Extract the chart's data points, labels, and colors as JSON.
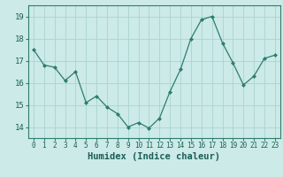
{
  "x": [
    0,
    1,
    2,
    3,
    4,
    5,
    6,
    7,
    8,
    9,
    10,
    11,
    12,
    13,
    14,
    15,
    16,
    17,
    18,
    19,
    20,
    21,
    22,
    23
  ],
  "y": [
    17.5,
    16.8,
    16.7,
    16.1,
    16.5,
    15.1,
    15.4,
    14.9,
    14.6,
    14.0,
    14.2,
    13.95,
    14.4,
    15.6,
    16.6,
    18.0,
    18.85,
    19.0,
    17.8,
    16.9,
    15.9,
    16.3,
    17.1,
    17.25
  ],
  "xlabel": "Humidex (Indice chaleur)",
  "ylabel": "",
  "ylim": [
    13.5,
    19.5
  ],
  "xlim": [
    -0.5,
    23.5
  ],
  "yticks": [
    14,
    15,
    16,
    17,
    18,
    19
  ],
  "xticks": [
    0,
    1,
    2,
    3,
    4,
    5,
    6,
    7,
    8,
    9,
    10,
    11,
    12,
    13,
    14,
    15,
    16,
    17,
    18,
    19,
    20,
    21,
    22,
    23
  ],
  "line_color": "#2e7d6e",
  "marker": "D",
  "marker_size": 2,
  "bg_color": "#cceae7",
  "grid_color": "#aad4d0",
  "tick_color": "#2e7d6e",
  "label_color": "#1a5e54",
  "font_name": "monospace",
  "xlabel_fontsize": 7.5,
  "ytick_fontsize": 6.5,
  "xtick_fontsize": 5.5,
  "linewidth": 0.9
}
